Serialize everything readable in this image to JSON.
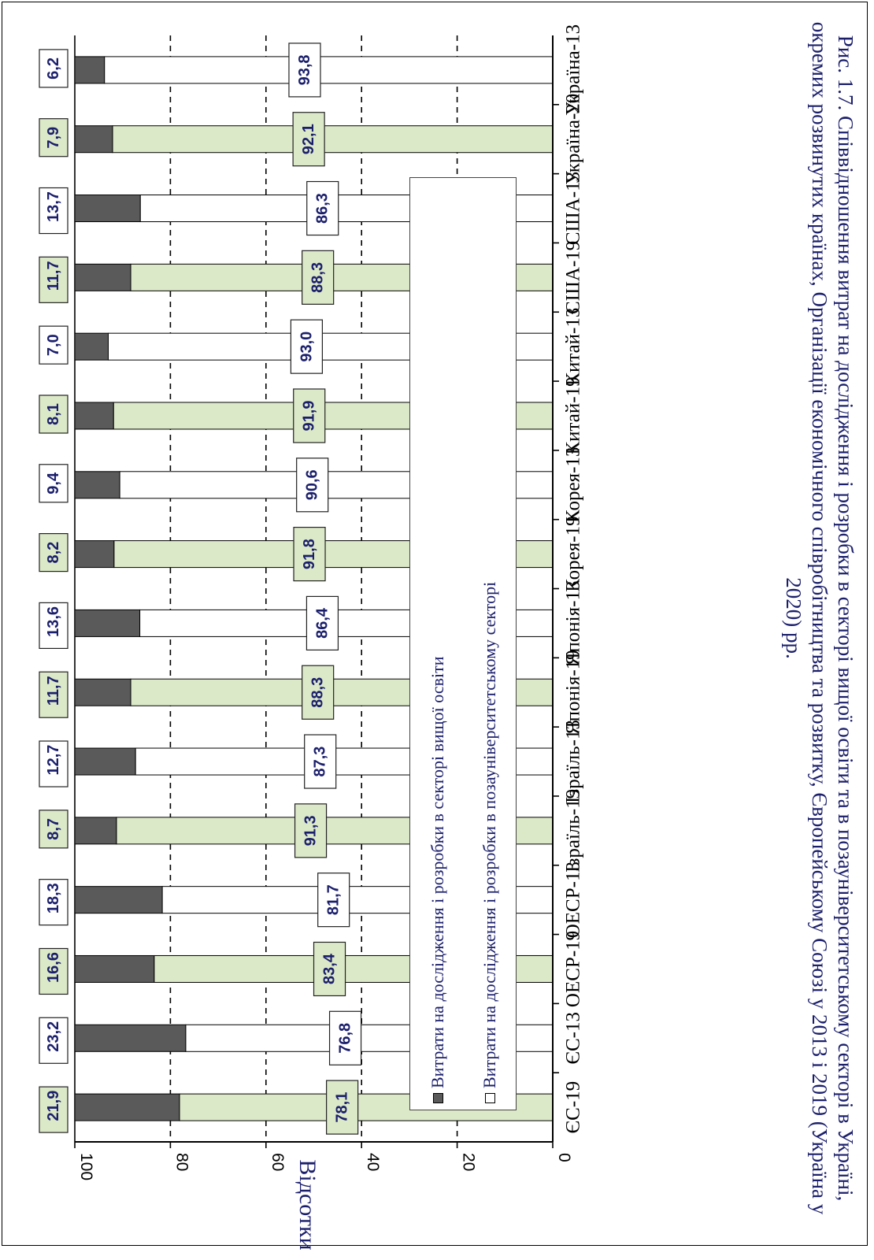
{
  "chart_data": {
    "type": "bar",
    "orientation": "horizontal-stacked-percent",
    "categories": [
      "Україна-13",
      "Україна-20",
      "США-13",
      "США-19",
      "Китай-13",
      "Китай-19",
      "Корея-13",
      "Корея-19",
      "Японія-13",
      "Японія-19",
      "Ізраїль-13",
      "Ізраїль-19",
      "ОЕСР-13",
      "ОЕСР-19",
      "ЄС-13",
      "ЄС-19"
    ],
    "series": [
      {
        "name": "Витрати на дослідження і розробки в секторі вищої освіти",
        "color": "#5a5a5a",
        "values": [
          6.2,
          7.9,
          13.7,
          11.7,
          7.0,
          8.1,
          9.4,
          8.2,
          13.6,
          11.7,
          12.7,
          8.7,
          18.3,
          16.6,
          23.2,
          21.9
        ],
        "labels": [
          "6,2",
          "7,9",
          "13,7",
          "11,7",
          "7,0",
          "8,1",
          "9,4",
          "8,2",
          "13,6",
          "11,7",
          "12,7",
          "8,7",
          "18,3",
          "16,6",
          "23,2",
          "21,9"
        ]
      },
      {
        "name": "Витрати на дослідження і розробки в позауніверситетському секторі",
        "colors": [
          "#ffffff",
          "#dce9c8"
        ],
        "values": [
          93.8,
          92.1,
          86.3,
          88.3,
          93.0,
          91.9,
          90.6,
          91.8,
          86.4,
          88.3,
          87.3,
          91.3,
          81.7,
          83.4,
          76.8,
          78.1
        ],
        "labels": [
          "93,8",
          "92,1",
          "86,3",
          "88,3",
          "93,0",
          "91,9",
          "90,6",
          "91,8",
          "86,4",
          "88,3",
          "87,3",
          "91,3",
          "81,7",
          "83,4",
          "76,8",
          "78,1"
        ]
      }
    ],
    "ylabel": "Відсотки",
    "ylim": [
      0,
      100
    ],
    "ticks": [
      "0",
      "20",
      "40",
      "60",
      "80",
      "100"
    ],
    "grid": true
  },
  "caption": "Рис. 1.7. Співвідношення витрат на дослідження і розробки в секторі вищої освіти та в позауніверситетському секторі в Україні, окремих розвинутих країнах, Організації економічного співробітництва та розвитку, Європейському Союзі у 2013 і 2019 (Україна у 2020) рр."
}
